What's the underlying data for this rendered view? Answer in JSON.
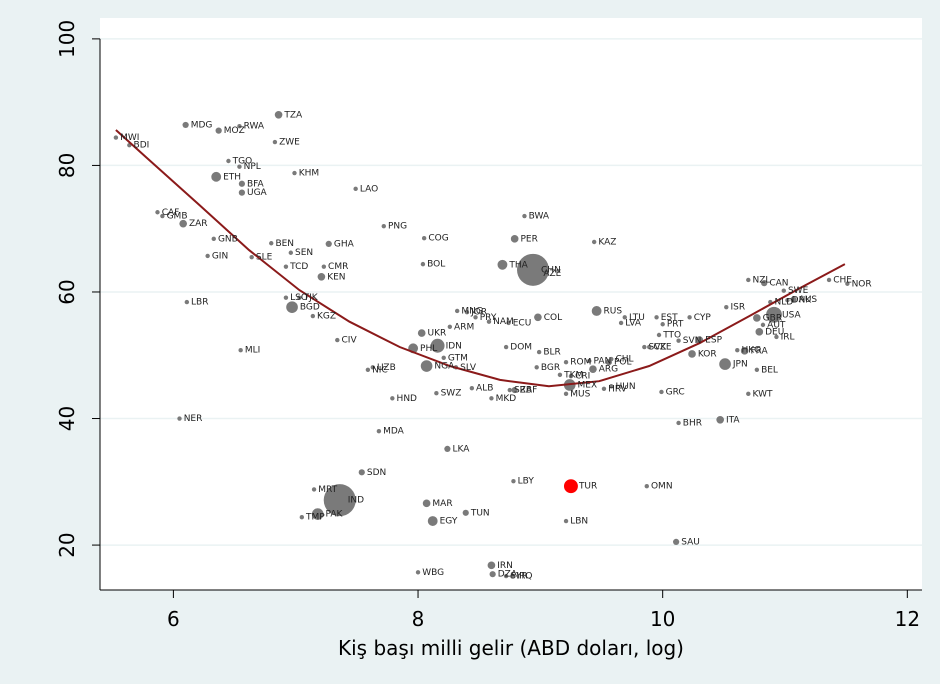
{
  "chart_data": {
    "type": "bubble-scatter",
    "x_label": "Kiş başı milli gelir (ABD doları, log)",
    "xlim": [
      5.4,
      12.12
    ],
    "ylim": [
      12.9,
      103.3
    ],
    "xticks": [
      6,
      8,
      10,
      12
    ],
    "yticks": [
      20,
      40,
      60,
      80,
      100
    ],
    "grid": true,
    "marker_color": "#7a7a7a",
    "background": "#eaf2f3",
    "fit": {
      "color": "#8b1a1a",
      "x": [
        5.53,
        5.8,
        6.21,
        6.62,
        7.03,
        7.44,
        7.85,
        8.26,
        8.67,
        9.07,
        9.48,
        9.89,
        10.3,
        10.71,
        11.12,
        11.49
      ],
      "y": [
        85.6,
        80.9,
        73.8,
        66.6,
        60.3,
        55.3,
        51.3,
        48.3,
        46.1,
        45.1,
        45.9,
        48.3,
        51.9,
        56.2,
        60.6,
        64.4
      ]
    },
    "points": [
      {
        "label": "MWI",
        "x": 5.53,
        "y": 84.4,
        "size": 1
      },
      {
        "label": "BDI",
        "x": 5.64,
        "y": 83.2,
        "size": 1
      },
      {
        "label": "MDG",
        "x": 6.1,
        "y": 86.4,
        "size": 2
      },
      {
        "label": "MOZ",
        "x": 6.37,
        "y": 85.5,
        "size": 2
      },
      {
        "label": "RWA",
        "x": 6.54,
        "y": 86.2,
        "size": 1
      },
      {
        "label": "TZA",
        "x": 6.86,
        "y": 88.0,
        "size": 3
      },
      {
        "label": "ZWE",
        "x": 6.83,
        "y": 83.7,
        "size": 1
      },
      {
        "label": "TGO",
        "x": 6.45,
        "y": 80.7,
        "size": 1
      },
      {
        "label": "NPL",
        "x": 6.54,
        "y": 79.8,
        "size": 1
      },
      {
        "label": "ETH",
        "x": 6.35,
        "y": 78.2,
        "size": 5
      },
      {
        "label": "KHM",
        "x": 6.99,
        "y": 78.8,
        "size": 1
      },
      {
        "label": "BFA",
        "x": 6.56,
        "y": 77.1,
        "size": 2
      },
      {
        "label": "UGA",
        "x": 6.56,
        "y": 75.7,
        "size": 2
      },
      {
        "label": "LAO",
        "x": 7.49,
        "y": 76.3,
        "size": 1
      },
      {
        "label": "CAF",
        "x": 5.87,
        "y": 72.6,
        "size": 1
      },
      {
        "label": "GMB",
        "x": 5.91,
        "y": 72.0,
        "size": 1
      },
      {
        "label": "ZAR",
        "x": 6.08,
        "y": 70.8,
        "size": 3
      },
      {
        "label": "BWA",
        "x": 8.87,
        "y": 72.0,
        "size": 1
      },
      {
        "label": "PNG",
        "x": 7.72,
        "y": 70.4,
        "size": 1
      },
      {
        "label": "COG",
        "x": 8.05,
        "y": 68.5,
        "size": 1
      },
      {
        "label": "PER",
        "x": 8.79,
        "y": 68.4,
        "size": 3
      },
      {
        "label": "KAZ",
        "x": 9.44,
        "y": 67.9,
        "size": 1
      },
      {
        "label": "GNB",
        "x": 6.33,
        "y": 68.4,
        "size": 1
      },
      {
        "label": "BEN",
        "x": 6.8,
        "y": 67.7,
        "size": 1
      },
      {
        "label": "GHA",
        "x": 7.27,
        "y": 67.6,
        "size": 2
      },
      {
        "label": "SEN",
        "x": 6.96,
        "y": 66.2,
        "size": 1
      },
      {
        "label": "GIN",
        "x": 6.28,
        "y": 65.7,
        "size": 1
      },
      {
        "label": "SLE",
        "x": 6.64,
        "y": 65.5,
        "size": 1
      },
      {
        "label": "TCD",
        "x": 6.92,
        "y": 64.0,
        "size": 1
      },
      {
        "label": "CMR",
        "x": 7.23,
        "y": 64.0,
        "size": 1
      },
      {
        "label": "BOL",
        "x": 8.04,
        "y": 64.4,
        "size": 1
      },
      {
        "label": "THA",
        "x": 8.69,
        "y": 64.3,
        "size": 5
      },
      {
        "label": "CHN",
        "x": 8.94,
        "y": 63.5,
        "size": 53
      },
      {
        "label": "AZE",
        "x": 8.99,
        "y": 62.9,
        "size": 1
      },
      {
        "label": "KEN",
        "x": 7.21,
        "y": 62.4,
        "size": 3
      },
      {
        "label": "NZL",
        "x": 10.7,
        "y": 61.9,
        "size": 1
      },
      {
        "label": "CAN",
        "x": 10.83,
        "y": 61.4,
        "size": 2
      },
      {
        "label": "CHE",
        "x": 11.36,
        "y": 61.9,
        "size": 1
      },
      {
        "label": "NOR",
        "x": 11.51,
        "y": 61.3,
        "size": 1
      },
      {
        "label": "SWE",
        "x": 10.99,
        "y": 60.2,
        "size": 1
      },
      {
        "label": "LBR",
        "x": 6.11,
        "y": 58.4,
        "size": 1
      },
      {
        "label": "LSO",
        "x": 6.92,
        "y": 59.1,
        "size": 1
      },
      {
        "label": "TJK",
        "x": 7.03,
        "y": 59.1,
        "size": 1
      },
      {
        "label": "BGD",
        "x": 6.97,
        "y": 57.6,
        "size": 7
      },
      {
        "label": "KGZ",
        "x": 7.14,
        "y": 56.2,
        "size": 1
      },
      {
        "label": "ISR",
        "x": 10.52,
        "y": 57.6,
        "size": 1
      },
      {
        "label": "NLD",
        "x": 10.88,
        "y": 58.4,
        "size": 1
      },
      {
        "label": "DNK",
        "x": 11.02,
        "y": 58.7,
        "size": 1
      },
      {
        "label": "AUS",
        "x": 11.07,
        "y": 58.8,
        "size": 2
      },
      {
        "label": "GBR",
        "x": 10.77,
        "y": 55.9,
        "size": 3
      },
      {
        "label": "USA",
        "x": 10.91,
        "y": 56.4,
        "size": 13
      },
      {
        "label": "AUT",
        "x": 10.82,
        "y": 54.8,
        "size": 1
      },
      {
        "label": "DEU",
        "x": 10.79,
        "y": 53.7,
        "size": 3
      },
      {
        "label": "IRL",
        "x": 10.93,
        "y": 52.9,
        "size": 1
      },
      {
        "label": "FRA",
        "x": 10.67,
        "y": 50.7,
        "size": 3
      },
      {
        "label": "HKG",
        "x": 10.61,
        "y": 50.8,
        "size": 1
      },
      {
        "label": "BEL",
        "x": 10.77,
        "y": 47.7,
        "size": 1
      },
      {
        "label": "KWT",
        "x": 10.7,
        "y": 43.9,
        "size": 1
      },
      {
        "label": "ITA",
        "x": 10.47,
        "y": 39.8,
        "size": 3
      },
      {
        "label": "JPN",
        "x": 10.51,
        "y": 48.6,
        "size": 7
      },
      {
        "label": "KOR",
        "x": 10.24,
        "y": 50.2,
        "size": 3
      },
      {
        "label": "ESP",
        "x": 10.3,
        "y": 52.4,
        "size": 3
      },
      {
        "label": "SVN",
        "x": 10.13,
        "y": 52.3,
        "size": 1
      },
      {
        "label": "TTO",
        "x": 9.97,
        "y": 53.2,
        "size": 1
      },
      {
        "label": "SVK",
        "x": 9.85,
        "y": 51.3,
        "size": 1
      },
      {
        "label": "CZE",
        "x": 9.89,
        "y": 51.3,
        "size": 1
      },
      {
        "label": "CYP",
        "x": 10.22,
        "y": 56.0,
        "size": 1
      },
      {
        "label": "EST",
        "x": 9.95,
        "y": 56.0,
        "size": 1
      },
      {
        "label": "PRT",
        "x": 10.0,
        "y": 54.9,
        "size": 1
      },
      {
        "label": "LTU",
        "x": 9.69,
        "y": 56.0,
        "size": 1
      },
      {
        "label": "LVA",
        "x": 9.66,
        "y": 55.1,
        "size": 1
      },
      {
        "label": "RUS",
        "x": 9.46,
        "y": 57.0,
        "size": 5
      },
      {
        "label": "COL",
        "x": 8.98,
        "y": 56.0,
        "size": 3
      },
      {
        "label": "ECU",
        "x": 8.74,
        "y": 55.1,
        "size": 1
      },
      {
        "label": "NAM",
        "x": 8.58,
        "y": 55.3,
        "size": 1
      },
      {
        "label": "MNG",
        "x": 8.32,
        "y": 57.0,
        "size": 1
      },
      {
        "label": "JOR",
        "x": 8.4,
        "y": 56.8,
        "size": 1
      },
      {
        "label": "PRY",
        "x": 8.47,
        "y": 56.0,
        "size": 1
      },
      {
        "label": "ARM",
        "x": 8.26,
        "y": 54.5,
        "size": 1
      },
      {
        "label": "UKR",
        "x": 8.03,
        "y": 53.5,
        "size": 3
      },
      {
        "label": "CIV",
        "x": 7.34,
        "y": 52.4,
        "size": 1
      },
      {
        "label": "MLI",
        "x": 6.55,
        "y": 50.8,
        "size": 1
      },
      {
        "label": "PHL",
        "x": 7.96,
        "y": 51.1,
        "size": 5
      },
      {
        "label": "IDN",
        "x": 8.16,
        "y": 51.5,
        "size": 10
      },
      {
        "label": "DOM",
        "x": 8.72,
        "y": 51.3,
        "size": 1
      },
      {
        "label": "BLR",
        "x": 8.99,
        "y": 50.5,
        "size": 1
      },
      {
        "label": "GTM",
        "x": 8.21,
        "y": 49.6,
        "size": 1
      },
      {
        "label": "UZB",
        "x": 7.63,
        "y": 48.1,
        "size": 1
      },
      {
        "label": "NIC",
        "x": 7.59,
        "y": 47.7,
        "size": 1
      },
      {
        "label": "NGA",
        "x": 8.07,
        "y": 48.3,
        "size": 7
      },
      {
        "label": "SLV",
        "x": 8.31,
        "y": 48.1,
        "size": 1
      },
      {
        "label": "BGR",
        "x": 8.97,
        "y": 48.1,
        "size": 1
      },
      {
        "label": "ROM",
        "x": 9.21,
        "y": 48.9,
        "size": 1
      },
      {
        "label": "PAN",
        "x": 9.4,
        "y": 49.1,
        "size": 1
      },
      {
        "label": "POL",
        "x": 9.56,
        "y": 48.9,
        "size": 2
      },
      {
        "label": "CHL",
        "x": 9.58,
        "y": 49.4,
        "size": 1
      },
      {
        "label": "ARG",
        "x": 9.43,
        "y": 47.8,
        "size": 3
      },
      {
        "label": "TKM",
        "x": 9.16,
        "y": 46.9,
        "size": 1
      },
      {
        "label": "CRI",
        "x": 9.25,
        "y": 46.7,
        "size": 1
      },
      {
        "label": "MEX",
        "x": 9.24,
        "y": 45.3,
        "size": 7
      },
      {
        "label": "TUR",
        "x": 9.25,
        "y": 29.3,
        "size": 10,
        "color": "#ff0000"
      },
      {
        "label": "HUN",
        "x": 9.58,
        "y": 45.1,
        "size": 1
      },
      {
        "label": "HRV",
        "x": 9.52,
        "y": 44.7,
        "size": 1
      },
      {
        "label": "MUS",
        "x": 9.21,
        "y": 43.9,
        "size": 1
      },
      {
        "label": "GRC",
        "x": 9.99,
        "y": 44.2,
        "size": 1
      },
      {
        "label": "BHR",
        "x": 10.13,
        "y": 39.3,
        "size": 1
      },
      {
        "label": "ALB",
        "x": 8.44,
        "y": 44.8,
        "size": 1
      },
      {
        "label": "SWZ",
        "x": 8.15,
        "y": 44.0,
        "size": 1
      },
      {
        "label": "MKD",
        "x": 8.6,
        "y": 43.2,
        "size": 1
      },
      {
        "label": "SRB",
        "x": 8.75,
        "y": 44.5,
        "size": 1
      },
      {
        "label": "ZAF",
        "x": 8.79,
        "y": 44.5,
        "size": 2
      },
      {
        "label": "HND",
        "x": 7.79,
        "y": 43.2,
        "size": 1
      },
      {
        "label": "NER",
        "x": 6.05,
        "y": 40.0,
        "size": 1
      },
      {
        "label": "MDA",
        "x": 7.68,
        "y": 38.0,
        "size": 1
      },
      {
        "label": "LKA",
        "x": 8.24,
        "y": 35.2,
        "size": 2
      },
      {
        "label": "SDN",
        "x": 7.54,
        "y": 31.5,
        "size": 2
      },
      {
        "label": "LBY",
        "x": 8.78,
        "y": 30.1,
        "size": 1
      },
      {
        "label": "OMN",
        "x": 9.87,
        "y": 29.3,
        "size": 1
      },
      {
        "label": "MRT",
        "x": 7.15,
        "y": 28.8,
        "size": 1
      },
      {
        "label": "IND",
        "x": 7.36,
        "y": 27.1,
        "size": 53
      },
      {
        "label": "MAR",
        "x": 8.07,
        "y": 26.6,
        "size": 3
      },
      {
        "label": "TUN",
        "x": 8.39,
        "y": 25.1,
        "size": 2
      },
      {
        "label": "EGY",
        "x": 8.12,
        "y": 23.8,
        "size": 5
      },
      {
        "label": "TMP",
        "x": 7.05,
        "y": 24.4,
        "size": 1
      },
      {
        "label": "PAK",
        "x": 7.18,
        "y": 24.9,
        "size": 7
      },
      {
        "label": "LBN",
        "x": 9.21,
        "y": 23.8,
        "size": 1
      },
      {
        "label": "SAU",
        "x": 10.11,
        "y": 20.5,
        "size": 2
      },
      {
        "label": "IRN",
        "x": 8.6,
        "y": 16.8,
        "size": 3
      },
      {
        "label": "DZA",
        "x": 8.61,
        "y": 15.4,
        "size": 2
      },
      {
        "label": "SYR",
        "x": 8.72,
        "y": 15.1,
        "size": 1
      },
      {
        "label": "IRQ",
        "x": 8.77,
        "y": 15.1,
        "size": 1
      },
      {
        "label": "WBG",
        "x": 8.0,
        "y": 15.7,
        "size": 1
      }
    ]
  }
}
